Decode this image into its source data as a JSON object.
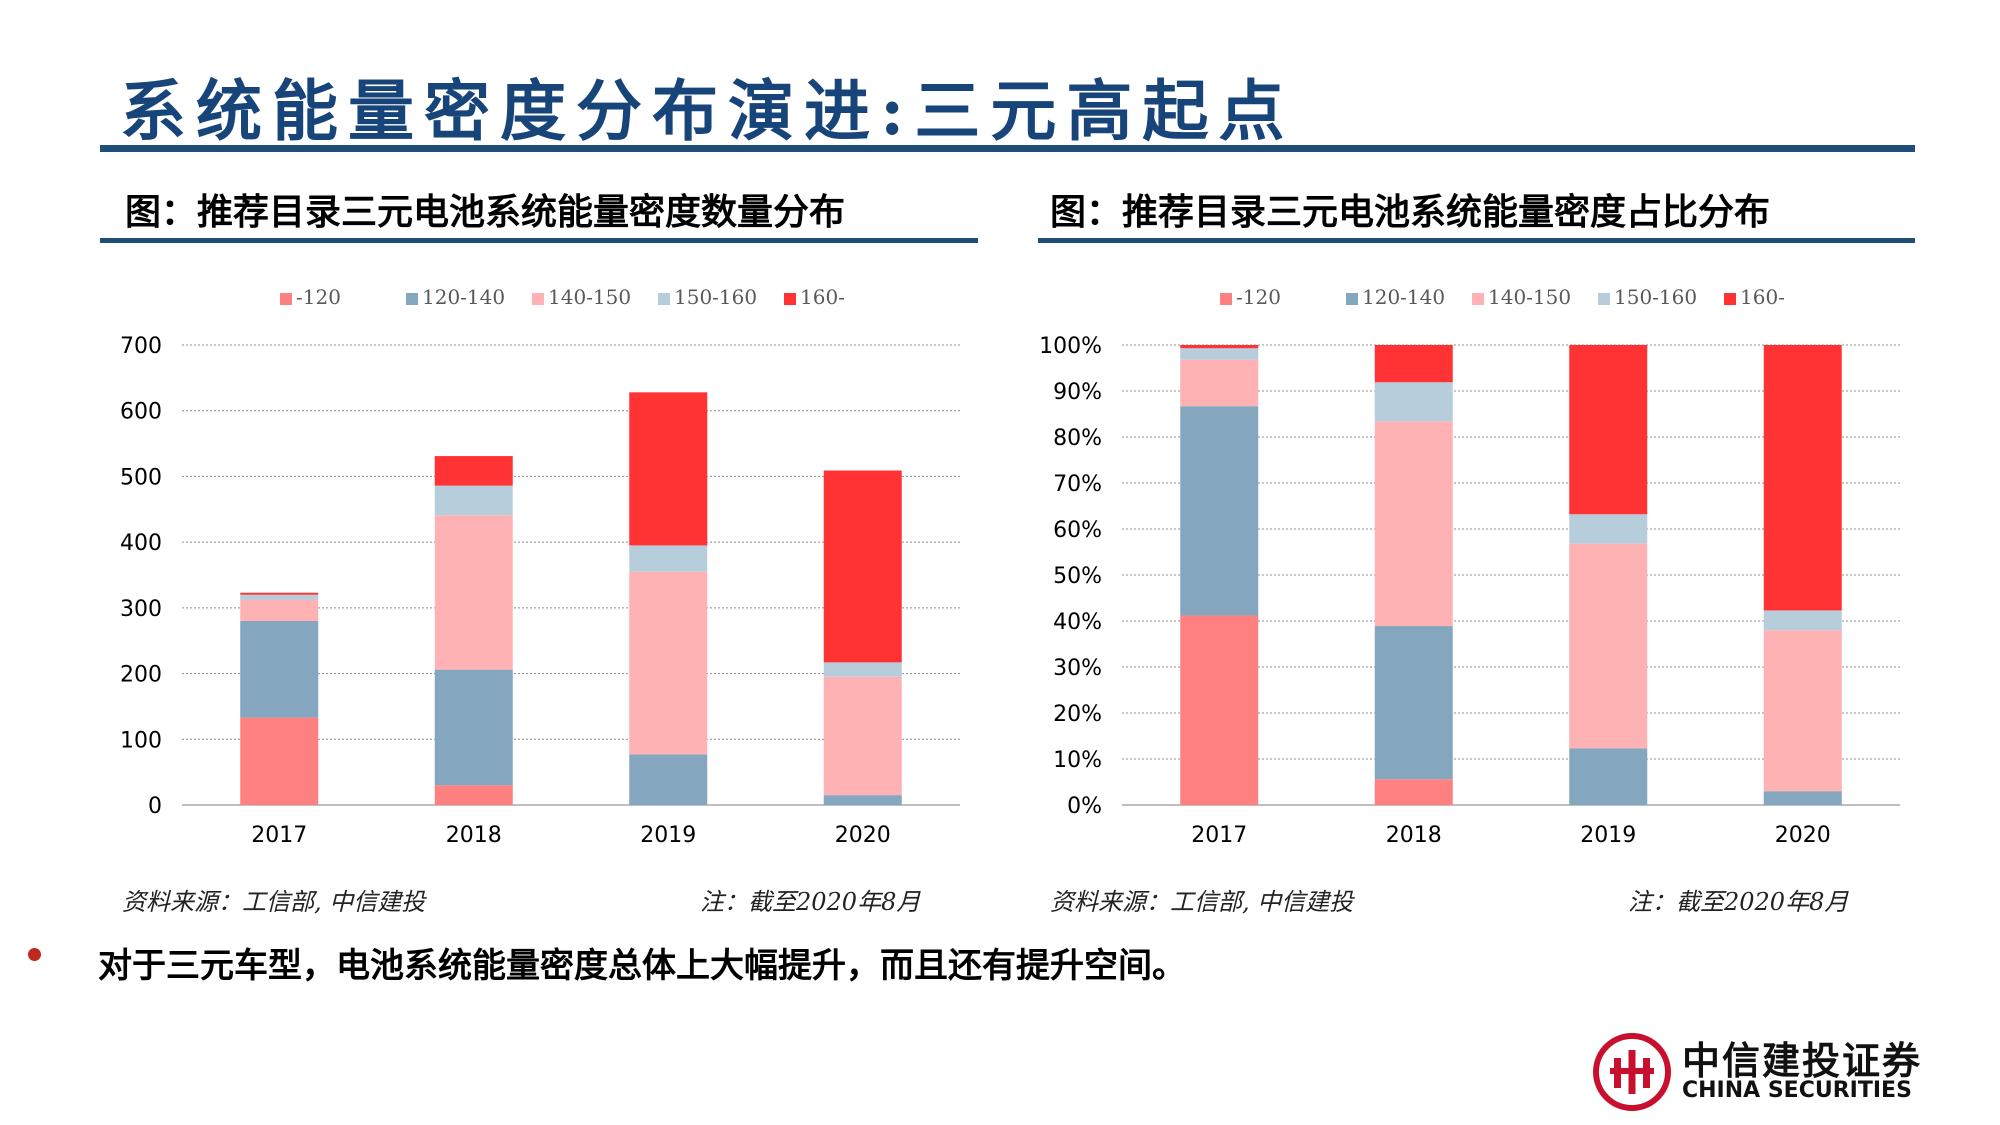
{
  "page": {
    "title": "系统能量密度分布演进:三元高起点",
    "bullet": "对于三元车型，电池系统能量密度总体上大幅提升，而且还有提升空间。"
  },
  "logo": {
    "name_cn": "中信建投证券",
    "name_en": "CHINA SECURITIES",
    "color": "#c8102e"
  },
  "left_panel": {
    "title": "图：推荐目录三元电池系统能量密度数量分布",
    "source": "资料来源：工信部, 中信建投",
    "note": "注：截至2020年8月"
  },
  "right_panel": {
    "title": "图：推荐目录三元电池系统能量密度占比分布",
    "source": "资料来源：工信部, 中信建投",
    "note": "注：截至2020年8月"
  },
  "chart_data": [
    {
      "type": "bar",
      "stacked": true,
      "categories": [
        "2017",
        "2018",
        "2019",
        "2020"
      ],
      "ylim": [
        0,
        700
      ],
      "yticks": [
        0,
        100,
        200,
        300,
        400,
        500,
        600,
        700
      ],
      "ytick_labels": [
        "0",
        "100",
        "200",
        "300",
        "400",
        "500",
        "600",
        "700"
      ],
      "grid": true,
      "legend": "top",
      "series": [
        {
          "name": "-120",
          "color": "#ff8080",
          "values": [
            133,
            30,
            0,
            0
          ]
        },
        {
          "name": "120-140",
          "color": "#84a6bf",
          "values": [
            147,
            176,
            77,
            15
          ]
        },
        {
          "name": "140-150",
          "color": "#ffb2b4",
          "values": [
            32,
            235,
            278,
            180
          ]
        },
        {
          "name": "150-160",
          "color": "#b8cddb",
          "values": [
            8,
            45,
            40,
            22
          ]
        },
        {
          "name": "160-",
          "color": "#ff3333",
          "values": [
            3,
            45,
            233,
            292
          ]
        }
      ]
    },
    {
      "type": "bar",
      "stacked": true,
      "categories": [
        "2017",
        "2018",
        "2019",
        "2020"
      ],
      "ylim": [
        0,
        100
      ],
      "yticks": [
        0,
        10,
        20,
        30,
        40,
        50,
        60,
        70,
        80,
        90,
        100
      ],
      "ytick_labels": [
        "0%",
        "10%",
        "20%",
        "30%",
        "40%",
        "50%",
        "60%",
        "70%",
        "80%",
        "90%",
        "100%"
      ],
      "grid": true,
      "legend": "top",
      "series": [
        {
          "name": "-120",
          "color": "#ff8080",
          "values": [
            41.2,
            5.6,
            0,
            0
          ]
        },
        {
          "name": "120-140",
          "color": "#84a6bf",
          "values": [
            45.5,
            33.3,
            12.3,
            3.0
          ]
        },
        {
          "name": "140-150",
          "color": "#ffb2b4",
          "values": [
            10.1,
            44.5,
            44.5,
            35.0
          ]
        },
        {
          "name": "150-160",
          "color": "#b8cddb",
          "values": [
            2.5,
            8.5,
            6.4,
            4.3
          ]
        },
        {
          "name": "160-",
          "color": "#ff3333",
          "values": [
            0.7,
            8.1,
            36.8,
            57.7
          ]
        }
      ]
    }
  ]
}
